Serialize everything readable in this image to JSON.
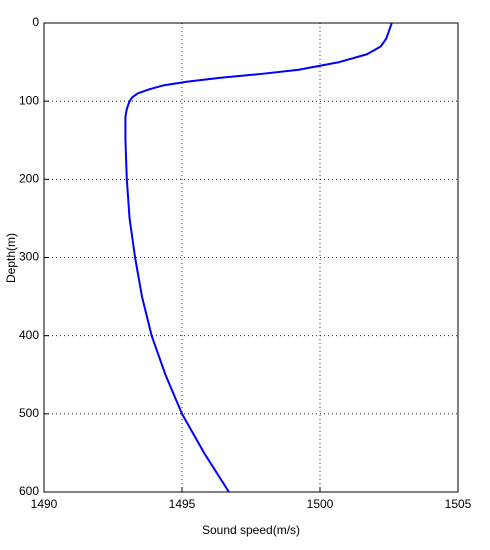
{
  "chart_data": {
    "type": "line",
    "xlabel": "Sound speed(m/s)",
    "ylabel": "Depth(m)",
    "x": [
      1502.6,
      1502.5,
      1502.4,
      1502.2,
      1501.7,
      1500.7,
      1499.2,
      1497.9,
      1496.4,
      1495.2,
      1494.3,
      1493.8,
      1493.4,
      1493.2,
      1493.1,
      1493.0,
      1492.95,
      1492.95,
      1493.0,
      1493.1,
      1493.3,
      1493.55,
      1493.9,
      1494.4,
      1495.0,
      1495.8,
      1496.7
    ],
    "series": [
      {
        "color": "#0000ff",
        "values": [
          0,
          10,
          20,
          30,
          40,
          50,
          60,
          65,
          70,
          75,
          80,
          85,
          90,
          95,
          100,
          110,
          120,
          150,
          200,
          250,
          300,
          350,
          400,
          450,
          500,
          550,
          600
        ]
      }
    ],
    "xlim": [
      1490,
      1505
    ],
    "xticks": [
      1490,
      1495,
      1500,
      1505
    ],
    "ylim": [
      0,
      600
    ],
    "yticks": [
      0,
      100,
      200,
      300,
      400,
      500,
      600
    ],
    "y_inverted": true,
    "grid": true
  }
}
